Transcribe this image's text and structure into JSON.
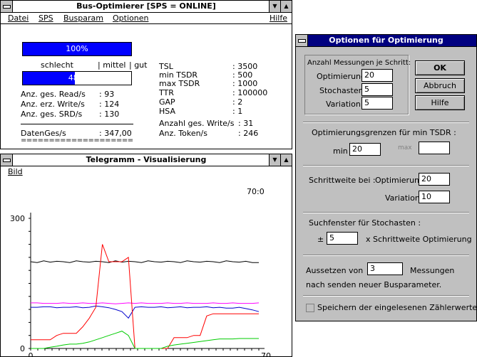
{
  "main_window": {
    "title": "Bus-Optimierer [SPS = ONLINE]",
    "menu": [
      "Datei",
      "SPS",
      "Busparam",
      "Optionen"
    ],
    "help": "Hilfe",
    "top_bar_label": "100%",
    "top_bar_fraction": 1.0,
    "scale_labels": {
      "bad": "schlecht",
      "mid": "| mittel",
      "good": "| gut"
    },
    "quality_bar_label": "48%",
    "quality_bar_fraction": 0.48,
    "stats": [
      {
        "label": "Anz. ges. Read/s",
        "value": ": 93"
      },
      {
        "label": "Anz. erz. Write/s",
        "value": ": 124"
      },
      {
        "label": "Anz. ges. SRD/s",
        "value": ": 130"
      }
    ],
    "daten_label": "DatenGes/s",
    "daten_value": ": 347,00",
    "double_rule": "====================",
    "params": [
      {
        "label": "TSL",
        "value": ": 3500"
      },
      {
        "label": "min TSDR",
        "value": ": 500"
      },
      {
        "label": "max TSDR",
        "value": ": 1000"
      },
      {
        "label": "TTR",
        "value": ": 100000"
      },
      {
        "label": "GAP",
        "value": ": 2"
      },
      {
        "label": "HSA",
        "value": ": 1"
      },
      {
        "label": "Anzahl ges. Write/s",
        "value": ": 31"
      },
      {
        "label": "Anz. Token/s",
        "value": ": 246"
      }
    ]
  },
  "telegram_window": {
    "title": "Telegramm - Visualisierung",
    "menu": [
      "Bild"
    ],
    "corner_readout": "70:0"
  },
  "options_dialog": {
    "title": "Optionen für Optimierung",
    "section_count": "Anzahl Messungen je Schritt:",
    "optimierung_label": "Optimierung",
    "optimierung_value": "20",
    "stochasten_label": "Stochasten",
    "stochasten_value": "5",
    "variation_label": "Variation",
    "variation_value": "5",
    "ok_label": "OK",
    "cancel_label": "Abbruch",
    "help_label": "Hilfe",
    "limits_title": "Optimierungsgrenzen für min TSDR :",
    "min_label": "min",
    "min_value": "20",
    "max_label": "max",
    "max_value": "",
    "step_title": "Schrittweite bei :",
    "step_opt_label": "Optimierung",
    "step_opt_value": "20",
    "step_var_label": "Variation",
    "step_var_value": "10",
    "search_title": "Suchfenster für Stochasten :",
    "pm": "±",
    "search_value": "5",
    "search_suffix": "x  Schrittweite Optimierung",
    "pause_prefix": "Aussetzen von",
    "pause_value": "3",
    "pause_suffix": "Messungen",
    "pause_line2": "nach senden neuer Busparameter.",
    "save_label": "Speichern der eingelesenen Zählerwerte",
    "save_checked": false
  },
  "chart_data": {
    "type": "line",
    "title": "",
    "xlabel": "",
    "ylabel": "",
    "xlim": [
      0,
      70
    ],
    "ylim": [
      0,
      300
    ],
    "x_tick_labels": [
      "0",
      "70"
    ],
    "y_tick_labels": [
      "0",
      "300"
    ],
    "x": [
      0,
      2,
      4,
      6,
      8,
      10,
      12,
      14,
      16,
      18,
      20,
      22,
      24,
      26,
      28,
      30,
      32,
      34,
      36,
      38,
      40,
      42,
      44,
      46,
      48,
      50,
      52,
      54,
      56,
      58,
      60,
      62,
      64,
      66,
      68,
      70
    ],
    "series": [
      {
        "color": "#000000",
        "values": [
          200,
          198,
          202,
          199,
          201,
          200,
          198,
          202,
          200,
          199,
          201,
          200,
          198,
          202,
          199,
          201,
          200,
          198,
          202,
          200,
          199,
          201,
          200,
          198,
          202,
          200,
          199,
          201,
          200,
          198,
          202,
          200,
          199,
          201,
          198,
          198
        ]
      },
      {
        "color": "#ff00ff",
        "values": [
          105,
          105,
          104,
          104,
          104,
          105,
          104,
          104,
          105,
          104,
          104,
          105,
          104,
          103,
          104,
          105,
          104,
          105,
          104,
          104,
          104,
          105,
          104,
          104,
          105,
          104,
          104,
          104,
          105,
          104,
          104,
          105,
          104,
          104,
          104,
          105
        ]
      },
      {
        "color": "#0000cc",
        "values": [
          95,
          95,
          96,
          96,
          94,
          95,
          95,
          96,
          94,
          95,
          98,
          96,
          94,
          90,
          85,
          70,
          95,
          96,
          95,
          95,
          96,
          94,
          95,
          96,
          94,
          95,
          95,
          96,
          94,
          95,
          93,
          93,
          95,
          92,
          89,
          85
        ]
      },
      {
        "color": "#ff0000",
        "values": [
          20,
          20,
          20,
          20,
          30,
          35,
          35,
          35,
          50,
          70,
          95,
          240,
          200,
          200,
          200,
          210,
          0,
          0,
          0,
          0,
          0,
          0,
          25,
          25,
          25,
          30,
          30,
          75,
          80,
          80,
          80,
          80,
          80,
          80,
          80,
          80
        ]
      },
      {
        "color": "#00cc00",
        "values": [
          0,
          0,
          0,
          3,
          5,
          8,
          10,
          10,
          12,
          15,
          20,
          25,
          30,
          35,
          40,
          30,
          0,
          0,
          0,
          0,
          0,
          5,
          8,
          10,
          12,
          14,
          16,
          18,
          20,
          22,
          22,
          22,
          23,
          23,
          23,
          23
        ]
      }
    ]
  }
}
